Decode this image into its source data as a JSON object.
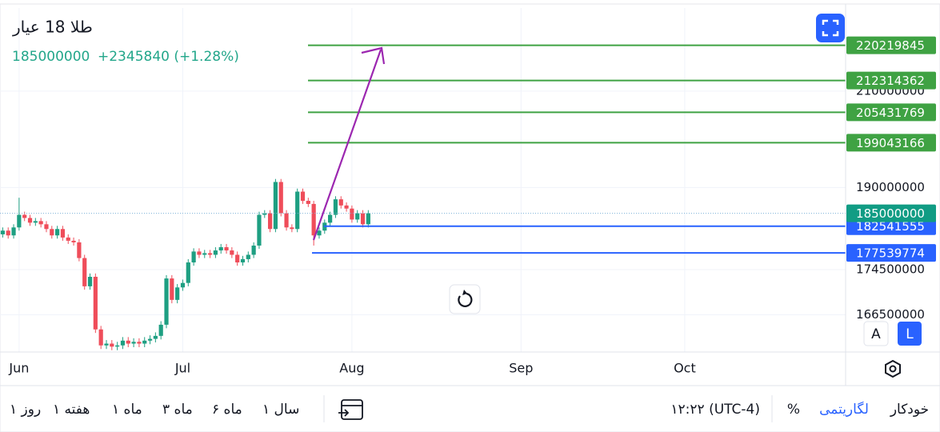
{
  "chart_data": {
    "type": "candlestick",
    "title": "طلا 18 عیار",
    "change": "+2345840 (+1.28%)",
    "categories": [
      null,
      null,
      null,
      "Jun",
      null,
      null,
      null,
      null,
      null,
      null,
      null,
      null,
      null,
      null,
      null,
      null,
      null,
      null,
      null,
      null,
      null,
      null,
      null,
      null,
      null,
      null,
      null,
      null,
      null,
      null,
      null,
      null,
      null,
      "Jul",
      null,
      null,
      null,
      null,
      null,
      null,
      null,
      null,
      null,
      null,
      null,
      null,
      null,
      null,
      null,
      null,
      null,
      null,
      null,
      null,
      null,
      null,
      null,
      null,
      null,
      null,
      null,
      null,
      null,
      null,
      "Aug",
      null,
      null,
      null,
      null,
      null,
      null,
      null,
      null,
      null,
      null,
      null,
      null,
      null,
      null,
      null,
      null,
      null,
      null,
      null,
      null,
      null,
      null,
      null,
      null,
      null,
      null,
      null,
      null,
      null,
      null,
      "Sep",
      null,
      null,
      null,
      null,
      null,
      null,
      null,
      null,
      null,
      null,
      null,
      null,
      null,
      null,
      null,
      null,
      null,
      null,
      null,
      null,
      null,
      null,
      null,
      null,
      null,
      null,
      null,
      null,
      null,
      "Oct"
    ],
    "open": [
      181000000,
      181700000,
      180800000,
      182300000,
      184700000,
      184100000,
      183200000,
      183500000,
      182900000,
      182000000,
      180800000,
      182000000,
      180400000,
      179800000,
      179500000,
      176600000,
      171500000,
      173200000,
      164000000,
      161300000,
      161600000,
      161100000,
      161300000,
      162100000,
      161600000,
      161900000,
      161600000,
      162100000,
      162400000,
      162900000,
      164800000,
      172900000,
      169100000,
      171300000,
      172100000,
      175800000,
      177800000,
      177200000,
      177500000,
      177200000,
      178000000,
      178600000,
      178000000,
      177200000,
      175800000,
      176400000,
      177200000,
      178900000,
      184700000,
      185000000,
      182000000,
      191100000,
      185000000,
      182300000,
      182000000,
      189200000,
      187400000,
      186800000,
      180800000,
      181700000,
      183200000,
      184700000,
      187700000,
      186500000,
      185900000,
      183800000,
      185000000,
      182900000,
      null,
      null,
      null,
      null,
      null,
      null,
      null,
      null,
      null,
      null,
      null,
      null,
      null,
      null,
      null,
      null,
      null,
      null,
      null,
      null,
      null,
      null,
      null,
      null,
      null,
      null,
      null,
      null,
      null,
      null,
      null,
      null,
      null,
      null,
      null,
      null,
      null,
      null,
      null,
      null,
      null,
      null,
      null,
      null,
      null,
      null,
      null,
      null,
      null,
      null,
      null,
      null,
      null,
      null,
      null,
      null,
      null,
      null
    ],
    "high": [
      182300000,
      182300000,
      182900000,
      188000000,
      185300000,
      184700000,
      184100000,
      184100000,
      183500000,
      182600000,
      182600000,
      182600000,
      181000000,
      180400000,
      180100000,
      177200000,
      173800000,
      173800000,
      164600000,
      162200000,
      162200000,
      161900000,
      162700000,
      162700000,
      162500000,
      162500000,
      162700000,
      163000000,
      163500000,
      165400000,
      173500000,
      173500000,
      171900000,
      172700000,
      176400000,
      178400000,
      178400000,
      178100000,
      178100000,
      178600000,
      179200000,
      179200000,
      178600000,
      177800000,
      177000000,
      177800000,
      179500000,
      185300000,
      185600000,
      185600000,
      191700000,
      191700000,
      185600000,
      182900000,
      189800000,
      189800000,
      188000000,
      187400000,
      182300000,
      183800000,
      185300000,
      188300000,
      188300000,
      187100000,
      186500000,
      185600000,
      185600000,
      185600000,
      null,
      null,
      null,
      null,
      null,
      null,
      null,
      null,
      null,
      null,
      null,
      null,
      null,
      null,
      null,
      null,
      null,
      null,
      null,
      null,
      null,
      null,
      null,
      null,
      null,
      null,
      null,
      null,
      null,
      null,
      null,
      null,
      null,
      null,
      null,
      null,
      null,
      null,
      null,
      null,
      null,
      null,
      null,
      null,
      null,
      null,
      null,
      null,
      null,
      null,
      null,
      null,
      null,
      null,
      null,
      null,
      null,
      null
    ],
    "low": [
      180400000,
      180200000,
      180200000,
      181700000,
      183500000,
      182600000,
      182600000,
      182300000,
      181400000,
      180200000,
      180200000,
      179800000,
      179200000,
      178900000,
      176000000,
      170900000,
      170900000,
      163400000,
      160700000,
      160700000,
      160500000,
      160500000,
      160700000,
      161000000,
      161000000,
      161000000,
      161000000,
      161500000,
      161800000,
      162300000,
      164200000,
      168500000,
      168500000,
      170700000,
      171500000,
      175200000,
      176600000,
      176600000,
      176600000,
      176600000,
      177400000,
      177400000,
      176600000,
      175200000,
      175200000,
      175800000,
      176600000,
      178300000,
      184100000,
      181400000,
      181400000,
      184400000,
      181700000,
      181400000,
      181400000,
      186800000,
      186200000,
      178900000,
      180200000,
      181100000,
      182600000,
      184100000,
      185900000,
      185300000,
      183200000,
      183200000,
      182300000,
      182300000,
      null,
      null,
      null,
      null,
      null,
      null,
      null,
      null,
      null,
      null,
      null,
      null,
      null,
      null,
      null,
      null,
      null,
      null,
      null,
      null,
      null,
      null,
      null,
      null,
      null,
      null,
      null,
      null,
      null,
      null,
      null,
      null,
      null,
      null,
      null,
      null,
      null,
      null,
      null,
      null,
      null,
      null,
      null,
      null,
      null,
      null,
      null,
      null,
      null,
      null,
      null,
      null,
      null,
      null,
      null,
      null,
      null,
      null
    ],
    "close": [
      181700000,
      180800000,
      182300000,
      184700000,
      184100000,
      183200000,
      183500000,
      182900000,
      182000000,
      180800000,
      182000000,
      180400000,
      179800000,
      179500000,
      176600000,
      171500000,
      173200000,
      164000000,
      161300000,
      161600000,
      161100000,
      161300000,
      162100000,
      161600000,
      161900000,
      161600000,
      162100000,
      162400000,
      162900000,
      164800000,
      172900000,
      169100000,
      171300000,
      172100000,
      175800000,
      177800000,
      177200000,
      177500000,
      177200000,
      178000000,
      178600000,
      178000000,
      177200000,
      175800000,
      176400000,
      177200000,
      178900000,
      184700000,
      185000000,
      182000000,
      191100000,
      185000000,
      182300000,
      182000000,
      189200000,
      187400000,
      186800000,
      180800000,
      181700000,
      183200000,
      184700000,
      187700000,
      186500000,
      185900000,
      183800000,
      185000000,
      182900000,
      185000000,
      null,
      null,
      null,
      null,
      null,
      null,
      null,
      null,
      null,
      null,
      null,
      null,
      null,
      null,
      null,
      null,
      null,
      null,
      null,
      null,
      null,
      null,
      null,
      null,
      null,
      null,
      null,
      null,
      null,
      null,
      null,
      null,
      null,
      null,
      null,
      null,
      null,
      null,
      null,
      null,
      null,
      null,
      null,
      null,
      null,
      null,
      null,
      null,
      null,
      null,
      null,
      null,
      null,
      null,
      null,
      null,
      null,
      null
    ],
    "up_color": "#1e9f82",
    "down_color": "#ef4d5a",
    "last_color": "#119c84",
    "ylim": [
      160200000,
      228900000
    ],
    "yticks": [
      210000000,
      190000000,
      174500000,
      166500000
    ],
    "log": true,
    "grid": true,
    "levels": [
      {
        "value": 220219845,
        "color": "#3fa243"
      },
      {
        "value": 212314362,
        "color": "#3fa243"
      },
      {
        "value": 205431769,
        "color": "#3fa243"
      },
      {
        "value": 199043166,
        "color": "#3fa243"
      },
      {
        "value": 182541555,
        "color": "#2962ff"
      },
      {
        "value": 177539774,
        "color": "#2962ff"
      }
    ]
  },
  "toolbar": {
    "ranges": [
      "۱ روز",
      "۱ هفته",
      "۱ ماه",
      "۳ ماه",
      "۶ ماه",
      "۱ سال"
    ],
    "time": "۱۲:۲۲ (UTC-4)",
    "percent": "%",
    "log": "لگاریتمی",
    "auto": "خودکار",
    "scale_auto": "A",
    "scale_log": "L"
  }
}
